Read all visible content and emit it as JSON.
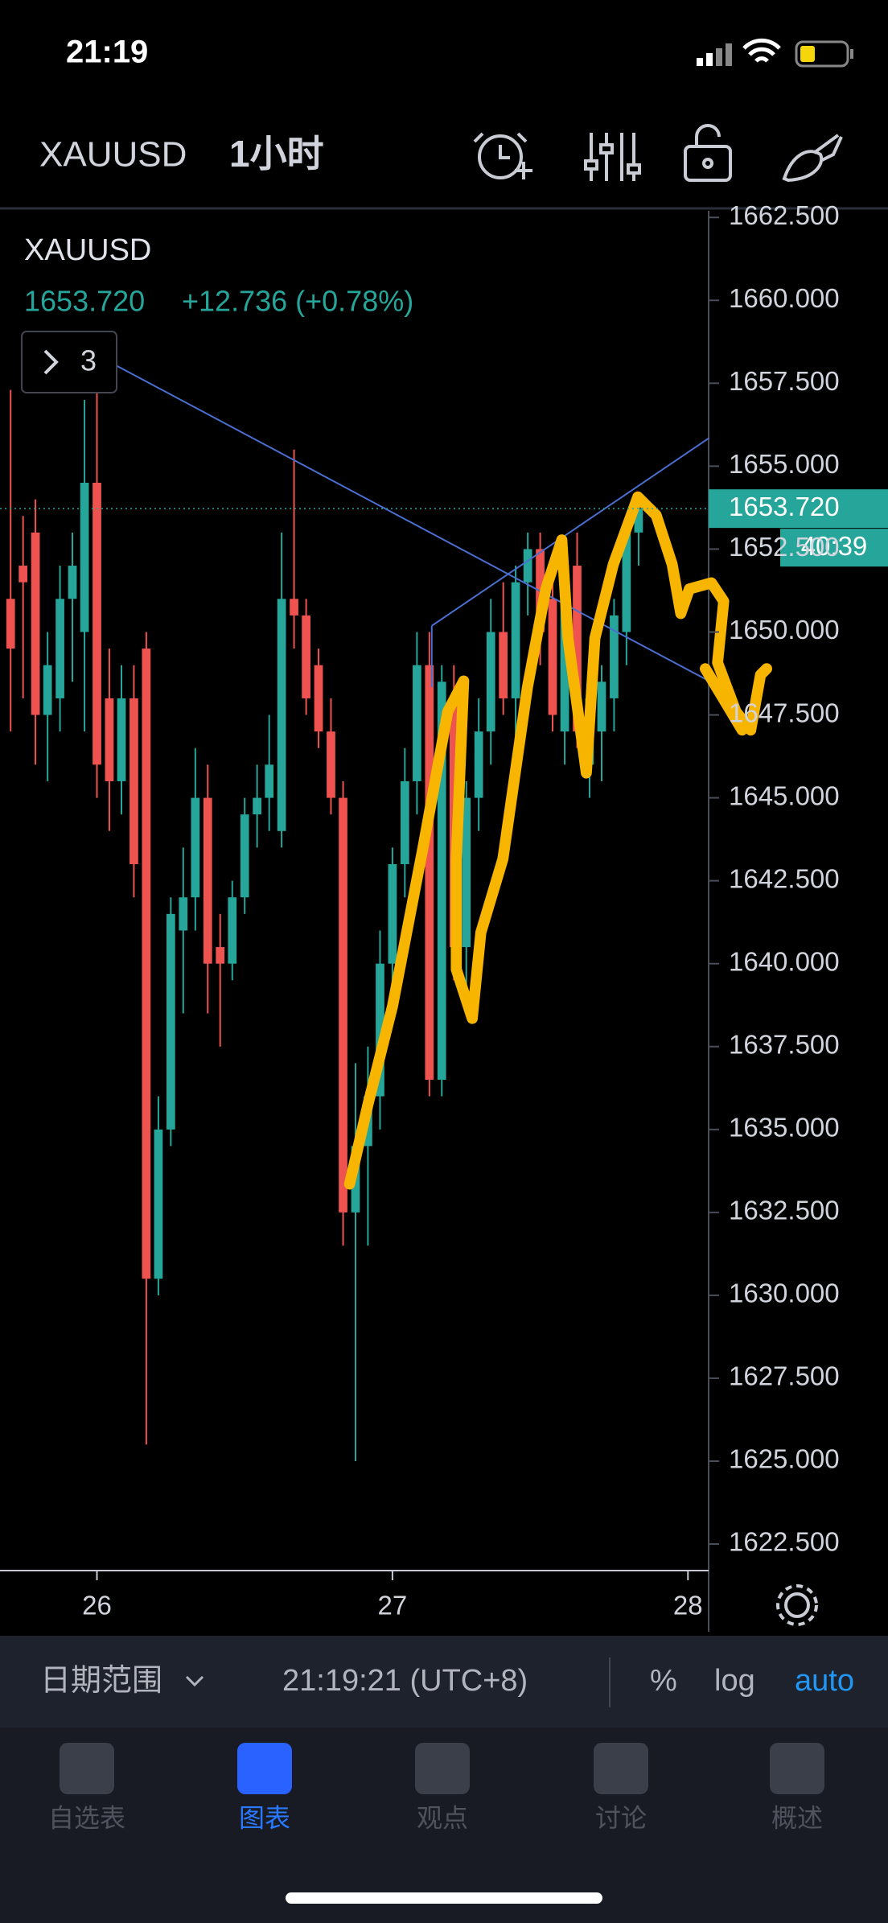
{
  "status": {
    "time": "21:19"
  },
  "header": {
    "symbol": "XAUUSD",
    "interval": "1小时"
  },
  "legend": {
    "symbol": "XAUUSD",
    "price": "1653.720",
    "change": "+12.736 (+0.78%)",
    "indicator_count": "3"
  },
  "chart_data": {
    "type": "candlestick",
    "up_color": "#26a69a",
    "down_color": "#ef5350",
    "xlim": [
      25.672,
      28.07
    ],
    "xticks": [
      26,
      27,
      28
    ],
    "ylim": [
      1621.7,
      1662.7
    ],
    "yticks": [
      {
        "value": 1622.5,
        "label": "1622.500"
      },
      {
        "value": 1625,
        "label": "1625.000"
      },
      {
        "value": 1627.5,
        "label": "1627.500"
      },
      {
        "value": 1630,
        "label": "1630.000"
      },
      {
        "value": 1632.5,
        "label": "1632.500"
      },
      {
        "value": 1635,
        "label": "1635.000"
      },
      {
        "value": 1637.5,
        "label": "1637.500"
      },
      {
        "value": 1640,
        "label": "1640.000"
      },
      {
        "value": 1642.5,
        "label": "1642.500"
      },
      {
        "value": 1645,
        "label": "1645.000"
      },
      {
        "value": 1647.5,
        "label": "1647.500"
      },
      {
        "value": 1650,
        "label": "1650.000"
      },
      {
        "value": 1652.5,
        "label": "1652.500"
      },
      {
        "value": 1655,
        "label": "1655.000"
      },
      {
        "value": 1657.5,
        "label": "1657.500"
      },
      {
        "value": 1660,
        "label": "1660.000"
      },
      {
        "value": 1662.5,
        "label": "1662.500"
      }
    ],
    "last_price": {
      "value": 1653.72,
      "label": "1653.720"
    },
    "countdown": "40:39",
    "x": [
      25.708,
      25.75,
      25.792,
      25.833,
      25.875,
      25.917,
      25.958,
      26,
      26.042,
      26.083,
      26.125,
      26.167,
      26.208,
      26.25,
      26.292,
      26.333,
      26.375,
      26.417,
      26.458,
      26.5,
      26.542,
      26.583,
      26.625,
      26.667,
      26.708,
      26.75,
      26.792,
      26.833,
      26.875,
      26.917,
      26.958,
      27,
      27.042,
      27.083,
      27.125,
      27.167,
      27.208,
      27.25,
      27.292,
      27.333,
      27.375,
      27.417,
      27.458,
      27.5,
      27.542,
      27.583,
      27.625,
      27.667,
      27.708,
      27.75,
      27.792,
      27.833
    ],
    "open": [
      1651,
      1652,
      1653,
      1647.5,
      1648,
      1651,
      1650,
      1654.5,
      1648,
      1645.5,
      1648,
      1649.5,
      1630.5,
      1635,
      1641,
      1642,
      1645,
      1640.5,
      1640,
      1642,
      1644.5,
      1645,
      1644,
      1651,
      1650.5,
      1649,
      1647,
      1645,
      1632.5,
      1634.5,
      1636,
      1640,
      1643,
      1645.5,
      1649,
      1636.5,
      1648,
      1640.5,
      1645,
      1647,
      1650,
      1648,
      1651.5,
      1652.5,
      1651,
      1647,
      1652,
      1646,
      1647,
      1648,
      1650,
      1653
    ],
    "high": [
      1657.3,
      1653.5,
      1654,
      1650,
      1652,
      1653,
      1657,
      1657.5,
      1649.5,
      1649,
      1649,
      1650,
      1636,
      1642,
      1643.5,
      1646.5,
      1646,
      1641.5,
      1642.5,
      1645,
      1646,
      1647.5,
      1653,
      1655.5,
      1651,
      1649.5,
      1648,
      1645.5,
      1637,
      1637.5,
      1641,
      1643.5,
      1646.5,
      1650,
      1650,
      1649,
      1649,
      1645.5,
      1648,
      1651,
      1651.5,
      1652,
      1653,
      1653,
      1652,
      1652.5,
      1653,
      1648.5,
      1649,
      1651,
      1653.5,
      1654
    ],
    "low": [
      1647,
      1648,
      1646,
      1645.5,
      1647,
      1648.5,
      1647,
      1645,
      1644,
      1644.5,
      1642,
      1625.5,
      1630,
      1634.5,
      1638.5,
      1641,
      1638.5,
      1637.5,
      1639.5,
      1641.5,
      1643.5,
      1644,
      1643.5,
      1649.5,
      1647.5,
      1646.5,
      1644.5,
      1631.5,
      1625,
      1631.5,
      1635,
      1639,
      1642,
      1644.5,
      1636,
      1636,
      1639.5,
      1639,
      1644,
      1646,
      1647.5,
      1646,
      1650.5,
      1649,
      1647,
      1646,
      1646.5,
      1645,
      1645.5,
      1647,
      1649,
      1652
    ],
    "close": [
      1649.5,
      1651.5,
      1647.5,
      1649,
      1651,
      1652,
      1654.5,
      1646,
      1645.5,
      1648,
      1643,
      1630.5,
      1635,
      1641.5,
      1642,
      1645,
      1640,
      1640,
      1642,
      1644.5,
      1645,
      1646,
      1651,
      1650.5,
      1648,
      1647,
      1645,
      1632.5,
      1634.5,
      1636,
      1640,
      1643,
      1645.5,
      1649,
      1636.5,
      1648.5,
      1640.5,
      1645,
      1647,
      1650,
      1648,
      1651.5,
      1652.5,
      1650,
      1647.5,
      1652,
      1647,
      1648,
      1648.5,
      1650.5,
      1653,
      1653.72
    ]
  },
  "toolbar": {
    "date_range": "日期范围",
    "time": "21:19:21 (UTC+8)",
    "percent": "%",
    "log": "log",
    "auto": "auto"
  },
  "tabs": [
    "自选表",
    "图表",
    "观点",
    "讨论",
    "概述"
  ]
}
